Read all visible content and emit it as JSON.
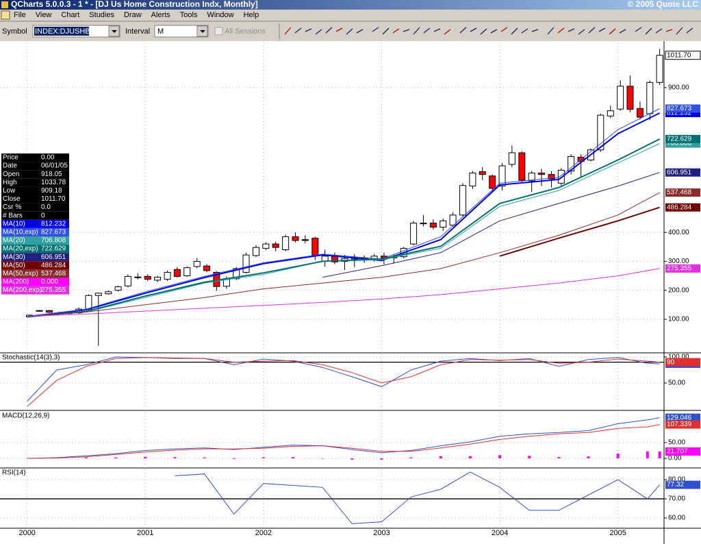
{
  "window": {
    "title": "QCharts 5.0.0.3 - 1 * - [DJ Us Home Construction Indx, Monthly]",
    "copyright": "© 2005 Quote LLC",
    "menu": [
      "File",
      "View",
      "Chart",
      "Studies",
      "Draw",
      "Alerts",
      "Tools",
      "Window",
      "Help"
    ]
  },
  "toolbar": {
    "symbol_label": "Symbol",
    "symbol": "INDEX:DJUSHB",
    "interval_label": "Interval",
    "interval": "M",
    "sessions": "All Sessions"
  },
  "data_window": {
    "rows": [
      [
        "Price",
        "0.00"
      ],
      [
        "Date",
        "06/01/05"
      ],
      [
        "Open",
        "918.05"
      ],
      [
        "High",
        "1033.78"
      ],
      [
        "Low",
        "909.18"
      ],
      [
        "Close",
        "1011.70"
      ],
      [
        "Csr %",
        "0.0"
      ],
      [
        "# Bars",
        "0"
      ]
    ]
  },
  "chart_data": {
    "type": "candlestick",
    "xlim": [
      1999.77,
      2005.39
    ],
    "xticks": [
      2000,
      2001,
      2002,
      2003,
      2004,
      2005
    ],
    "grid": true,
    "price": {
      "ylim": [
        -9,
        1056
      ],
      "yticks": [
        {
          "value": 100,
          "label": "100.00"
        },
        {
          "value": 200,
          "label": "200.00"
        },
        {
          "value": 300,
          "label": "300.00"
        },
        {
          "value": 400,
          "label": "400.00"
        },
        {
          "value": 900,
          "label": "900.00"
        }
      ],
      "candles": {
        "up_color": "#ffffff",
        "down_color": "#ff0000",
        "x": [
          2000.02,
          2000.103,
          2000.187,
          2000.27,
          2000.353,
          2000.437,
          2000.52,
          2000.603,
          2000.687,
          2000.77,
          2000.853,
          2000.937,
          2001.02,
          2001.103,
          2001.187,
          2001.27,
          2001.353,
          2001.437,
          2001.52,
          2001.603,
          2001.687,
          2001.77,
          2001.853,
          2001.937,
          2002.02,
          2002.103,
          2002.187,
          2002.27,
          2002.353,
          2002.437,
          2002.52,
          2002.603,
          2002.687,
          2002.77,
          2002.853,
          2002.937,
          2003.02,
          2003.103,
          2003.187,
          2003.27,
          2003.353,
          2003.437,
          2003.52,
          2003.603,
          2003.687,
          2003.77,
          2003.853,
          2003.937,
          2004.02,
          2004.103,
          2004.187,
          2004.27,
          2004.353,
          2004.437,
          2004.52,
          2004.603,
          2004.687,
          2004.77,
          2004.853,
          2004.937,
          2005.02,
          2005.103,
          2005.187,
          2005.27,
          2005.353
        ],
        "open": [
          108,
          128,
          130,
          122,
          120,
          122,
          135,
          182,
          188,
          200,
          215,
          246,
          248,
          235,
          238,
          272,
          250,
          282,
          284,
          262,
          214,
          240,
          262,
          320,
          345,
          360,
          340,
          385,
          375,
          380,
          300,
          320,
          300,
          308,
          312,
          306,
          318,
          312,
          316,
          360,
          432,
          432,
          418,
          425,
          460,
          560,
          610,
          595,
          560,
          635,
          675,
          578,
          605,
          600,
          570,
          612,
          660,
          650,
          685,
          802,
          826,
          905,
          828,
          810,
          918.05
        ],
        "high": [
          116,
          132,
          132,
          126,
          126,
          140,
          186,
          192,
          200,
          216,
          255,
          258,
          255,
          250,
          268,
          280,
          282,
          312,
          290,
          266,
          248,
          280,
          330,
          356,
          366,
          368,
          392,
          400,
          390,
          385,
          340,
          330,
          322,
          325,
          320,
          325,
          330,
          325,
          350,
          440,
          460,
          445,
          448,
          470,
          570,
          612,
          625,
          600,
          640,
          700,
          680,
          612,
          620,
          612,
          622,
          670,
          670,
          690,
          810,
          838,
          925,
          942,
          852,
          925,
          1033.78
        ],
        "low": [
          106,
          126,
          122,
          114,
          117,
          118,
          130,
          8,
          185,
          196,
          210,
          238,
          232,
          228,
          232,
          244,
          246,
          276,
          262,
          198,
          205,
          235,
          258,
          315,
          338,
          335,
          335,
          365,
          362,
          305,
          282,
          290,
          270,
          280,
          295,
          300,
          290,
          292,
          310,
          355,
          420,
          410,
          405,
          420,
          455,
          550,
          580,
          540,
          545,
          625,
          570,
          540,
          560,
          555,
          562,
          600,
          590,
          645,
          678,
          795,
          820,
          815,
          790,
          788,
          909.18
        ],
        "close": [
          114,
          130,
          124,
          118,
          122,
          135,
          182,
          190,
          195,
          212,
          248,
          244,
          238,
          245,
          262,
          248,
          278,
          300,
          268,
          213,
          240,
          275,
          322,
          348,
          360,
          348,
          385,
          372,
          372,
          322,
          318,
          298,
          310,
          315,
          305,
          318,
          312,
          315,
          345,
          432,
          430,
          418,
          440,
          460,
          562,
          605,
          600,
          552,
          630,
          675,
          580,
          605,
          600,
          585,
          615,
          662,
          645,
          685,
          805,
          820,
          905,
          825,
          798,
          918,
          1011.7
        ]
      },
      "ma_x": [
        2000.0,
        2000.5,
        2001.0,
        2001.5,
        2002.0,
        2002.5,
        2003.0,
        2003.5,
        2004.0,
        2004.5,
        2005.0,
        2005.353
      ],
      "series": [
        {
          "name": "MA(10)",
          "color": "#0000e0",
          "width": 2,
          "last": "812.232",
          "values": [
            109,
            133,
            190,
            244,
            292,
            322,
            303,
            375,
            564,
            583,
            741,
            812.232
          ]
        },
        {
          "name": "MA(10,exp)",
          "color": "#3050e8",
          "width": 1,
          "last": "827.673",
          "values": [
            110,
            135,
            195,
            248,
            295,
            325,
            308,
            385,
            570,
            590,
            755,
            827.673
          ]
        },
        {
          "name": "MA(20)",
          "color": "#30a0a0",
          "width": 1,
          "last": "706.808",
          "values": [
            108,
            125,
            175,
            225,
            255,
            300,
            305,
            345,
            490,
            545,
            640,
            706.808
          ]
        },
        {
          "name": "MA(20,exp)",
          "color": "#007070",
          "width": 2,
          "last": "722.629",
          "values": [
            108,
            127,
            180,
            228,
            260,
            300,
            308,
            352,
            500,
            555,
            650,
            722.629
          ]
        },
        {
          "name": "MA(30)",
          "color": "#202080",
          "width": 1,
          "last": "606.951",
          "values": [
            null,
            null,
            null,
            null,
            null,
            245,
            285,
            330,
            440,
            500,
            560,
            606.951
          ]
        },
        {
          "name": "MA(50)",
          "color": "#700000",
          "width": 2,
          "last": "486.284",
          "values": [
            null,
            null,
            null,
            null,
            null,
            null,
            null,
            null,
            318,
            380,
            440,
            486.284
          ]
        },
        {
          "name": "MA(50,exp)",
          "color": "#8b2a2a",
          "width": 1,
          "last": "537.468",
          "values": [
            110,
            125,
            150,
            175,
            205,
            225,
            245,
            275,
            330,
            390,
            460,
            537.468
          ]
        },
        {
          "name": "MA(200)",
          "color": "#ff00ff",
          "last": "0.000"
        },
        {
          "name": "MA(200,exp)",
          "color": "#e030e0",
          "width": 1,
          "last": "275.355",
          "values": [
            110,
            118,
            128,
            138,
            148,
            158,
            170,
            185,
            205,
            225,
            250,
            275.355
          ]
        }
      ],
      "close_color": "#ffffff"
    },
    "osc_x": [
      2000.0,
      2000.25,
      2000.5,
      2000.75,
      2001.0,
      2001.25,
      2001.5,
      2001.75,
      2002.0,
      2002.25,
      2002.5,
      2002.75,
      2003.0,
      2003.25,
      2003.5,
      2003.75,
      2004.0,
      2004.25,
      2004.5,
      2004.75,
      2005.0,
      2005.25,
      2005.353
    ],
    "stochastic": {
      "title": "Stochastic(14(3),3)",
      "ylim": [
        4,
        105.3
      ],
      "yticks": [
        {
          "value": 50,
          "label": "50.00"
        },
        {
          "value": 100,
          "label": "100.00"
        }
      ],
      "levels": [
        90
      ],
      "series": [
        {
          "color": "#3050d0",
          "values": [
            15,
            75,
            85,
            100,
            99,
            97,
            97,
            85,
            96,
            92,
            80,
            62,
            43,
            75,
            92,
            97,
            93,
            97,
            82,
            95,
            99,
            88,
            86.94
          ]
        },
        {
          "color": "#e03030",
          "values": [
            5,
            55,
            82,
            97,
            99,
            98,
            97,
            90,
            92,
            93,
            85,
            70,
            50,
            62,
            85,
            95,
            94,
            95,
            88,
            90,
            96,
            92,
            90
          ]
        }
      ]
    },
    "macd": {
      "title": "MACD(12,26,9)",
      "ylim": [
        -24,
        145.6
      ],
      "yticks": [
        {
          "value": 0,
          "label": "0.00"
        },
        {
          "value": 50,
          "label": "50.00"
        }
      ],
      "series": [
        {
          "color": "#3050d0",
          "values": [
            0,
            2,
            8,
            15,
            25,
            30,
            33,
            28,
            35,
            42,
            40,
            28,
            18,
            25,
            40,
            52,
            70,
            78,
            82,
            88,
            110,
            122,
            129.046
          ]
        },
        {
          "color": "#e03030",
          "values": [
            0,
            1,
            5,
            12,
            20,
            26,
            30,
            30,
            32,
            38,
            40,
            32,
            22,
            22,
            33,
            45,
            60,
            70,
            78,
            82,
            95,
            100,
            107.339
          ]
        }
      ],
      "histogram": {
        "color": "#ff00ff",
        "values": [
          0,
          1,
          3,
          3,
          5,
          4,
          3,
          -2,
          3,
          4,
          0,
          -4,
          -4,
          3,
          7,
          7,
          10,
          8,
          4,
          6,
          15,
          22,
          21.707
        ]
      }
    },
    "rsi": {
      "title": "RSI(14)",
      "ylim": [
        55,
        85.4
      ],
      "yticks": [
        {
          "value": 60,
          "label": "60.00"
        },
        {
          "value": 70,
          "label": "70.00"
        },
        {
          "value": 80,
          "label": "80.00"
        }
      ],
      "levels": [
        70
      ],
      "series": [
        {
          "color": "#3050d0",
          "values": [
            null,
            null,
            null,
            null,
            null,
            82,
            83,
            62,
            78,
            77,
            76,
            57,
            58,
            71,
            75,
            84,
            76,
            64,
            64,
            72,
            80,
            70,
            77.32
          ]
        }
      ]
    }
  }
}
